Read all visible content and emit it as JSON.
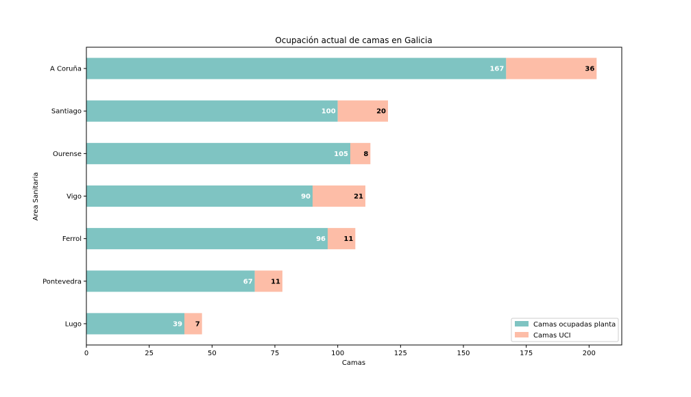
{
  "chart_data": {
    "type": "bar",
    "orientation": "horizontal",
    "stacked": true,
    "title": "Ocupación actual de camas en Galicia",
    "xlabel": "Camas",
    "ylabel": "Area Sanitaria",
    "categories": [
      "A Coruña",
      "Santiago",
      "Ourense",
      "Vigo",
      "Ferrol",
      "Pontevedra",
      "Lugo"
    ],
    "series": [
      {
        "name": "Camas ocupadas planta",
        "color": "#7fc4c2",
        "label_color": "#ffffff",
        "values": [
          167,
          100,
          105,
          90,
          96,
          67,
          39
        ]
      },
      {
        "name": "Camas UCI",
        "color": "#fdbda7",
        "label_color": "#000000",
        "values": [
          36,
          20,
          8,
          21,
          11,
          11,
          7
        ]
      }
    ],
    "xlim": [
      0,
      213
    ],
    "xticks": [
      0,
      25,
      50,
      75,
      100,
      125,
      150,
      175,
      200
    ],
    "grid": false,
    "legend_position": "lower-right"
  }
}
